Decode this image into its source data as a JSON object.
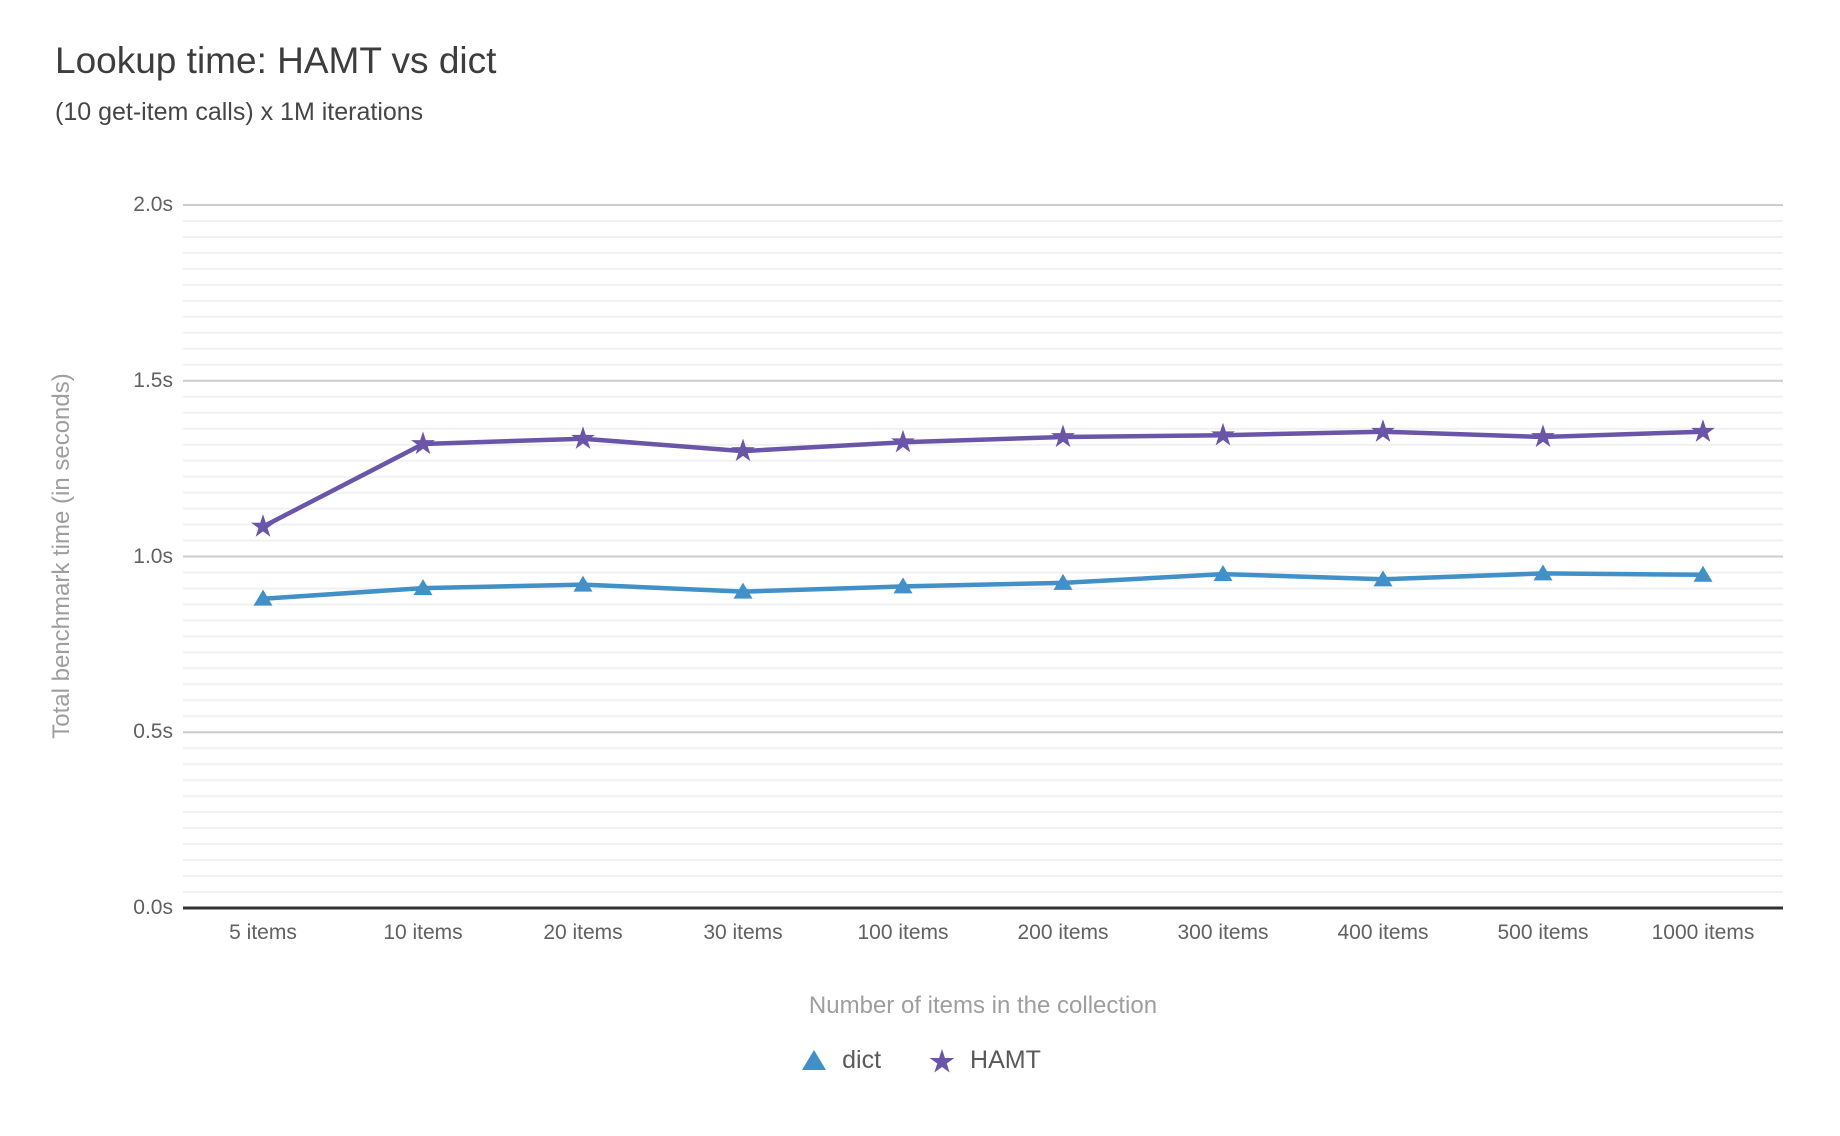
{
  "chart_data": {
    "type": "line",
    "title": "Lookup time: HAMT vs dict",
    "subtitle": "(10 get-item calls) x 1M iterations",
    "xlabel": "Number of items in the collection",
    "ylabel": "Total benchmark time (in seconds)",
    "categories": [
      "5 items",
      "10 items",
      "20 items",
      "30 items",
      "100 items",
      "200 items",
      "300 items",
      "400 items",
      "500 items",
      "1000 items"
    ],
    "series": [
      {
        "name": "dict",
        "marker": "triangle",
        "color": "#4190c8",
        "values": [
          0.88,
          0.91,
          0.92,
          0.9,
          0.915,
          0.925,
          0.95,
          0.935,
          0.952,
          0.948
        ]
      },
      {
        "name": "HAMT",
        "marker": "star",
        "color": "#6a55a8",
        "values": [
          1.085,
          1.32,
          1.335,
          1.3,
          1.325,
          1.34,
          1.345,
          1.355,
          1.34,
          1.355
        ]
      }
    ],
    "y_axis": {
      "min": 0,
      "max": 2,
      "major_step": 0.5,
      "minors_between_majors": 10,
      "tick_labels": [
        "0.0s",
        "0.5s",
        "1.0s",
        "1.5s",
        "2.0s"
      ]
    },
    "legend_position": "bottom",
    "grid": {
      "major_color": "#cccccc",
      "minor_color": "#f1f1f1",
      "axis_color": "#333333"
    }
  }
}
